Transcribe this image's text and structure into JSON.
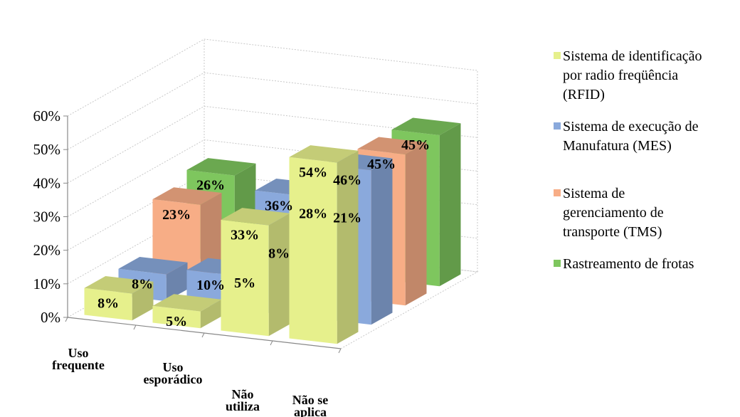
{
  "chart_data": {
    "type": "bar",
    "title": "",
    "xlabel": "",
    "ylabel": "",
    "ylim": [
      0,
      60
    ],
    "y_ticks": [
      "0%",
      "10%",
      "20%",
      "30%",
      "40%",
      "50%",
      "60%"
    ],
    "grid": true,
    "legend_position": "right",
    "categories": [
      [
        "Uso",
        "frequente"
      ],
      [
        "Uso",
        "esporádico"
      ],
      [
        "Não",
        "utiliza"
      ],
      [
        "Não se",
        "aplica"
      ]
    ],
    "series": [
      {
        "name": "Sistema de identificação por radio freqüência (RFID)",
        "values": [
          8,
          5,
          33,
          54
        ],
        "labels": [
          "8%",
          "5%",
          "33%",
          "54%"
        ],
        "color": "#e6f08c"
      },
      {
        "name": "Sistema de execução de Manufatura (MES)",
        "values": [
          8,
          10,
          36,
          46
        ],
        "labels": [
          "8%",
          "10%",
          "36%",
          "46%"
        ],
        "color": "#8aa9dc"
      },
      {
        "name": "Sistema de gerenciamento de transporte (TMS)",
        "values": [
          23,
          5,
          28,
          45
        ],
        "labels": [
          "23%",
          "5%",
          "28%",
          "45%"
        ],
        "color": "#f7ad86"
      },
      {
        "name": "Rastreamento de frotas",
        "values": [
          26,
          8,
          21,
          45
        ],
        "labels": [
          "26%",
          "8%",
          "21%",
          "45%"
        ],
        "color": "#7ec65e"
      }
    ]
  },
  "legend": [
    {
      "lines": [
        "Sistema de identificação",
        "por radio freqüência",
        "(RFID)"
      ],
      "color": "#e6f08c",
      "gap_after": 0
    },
    {
      "lines": [
        "Sistema de execução de",
        "Manufatura (MES)"
      ],
      "color": "#8aa9dc",
      "gap_after": 0
    },
    {
      "lines": [
        "Sistema de",
        "gerenciamento de",
        "transporte (TMS)"
      ],
      "color": "#f7ad86",
      "gap_after": 0
    },
    {
      "lines": [
        "Rastreamento de frotas"
      ],
      "color": "#7ec65e",
      "gap_after": 0
    }
  ]
}
